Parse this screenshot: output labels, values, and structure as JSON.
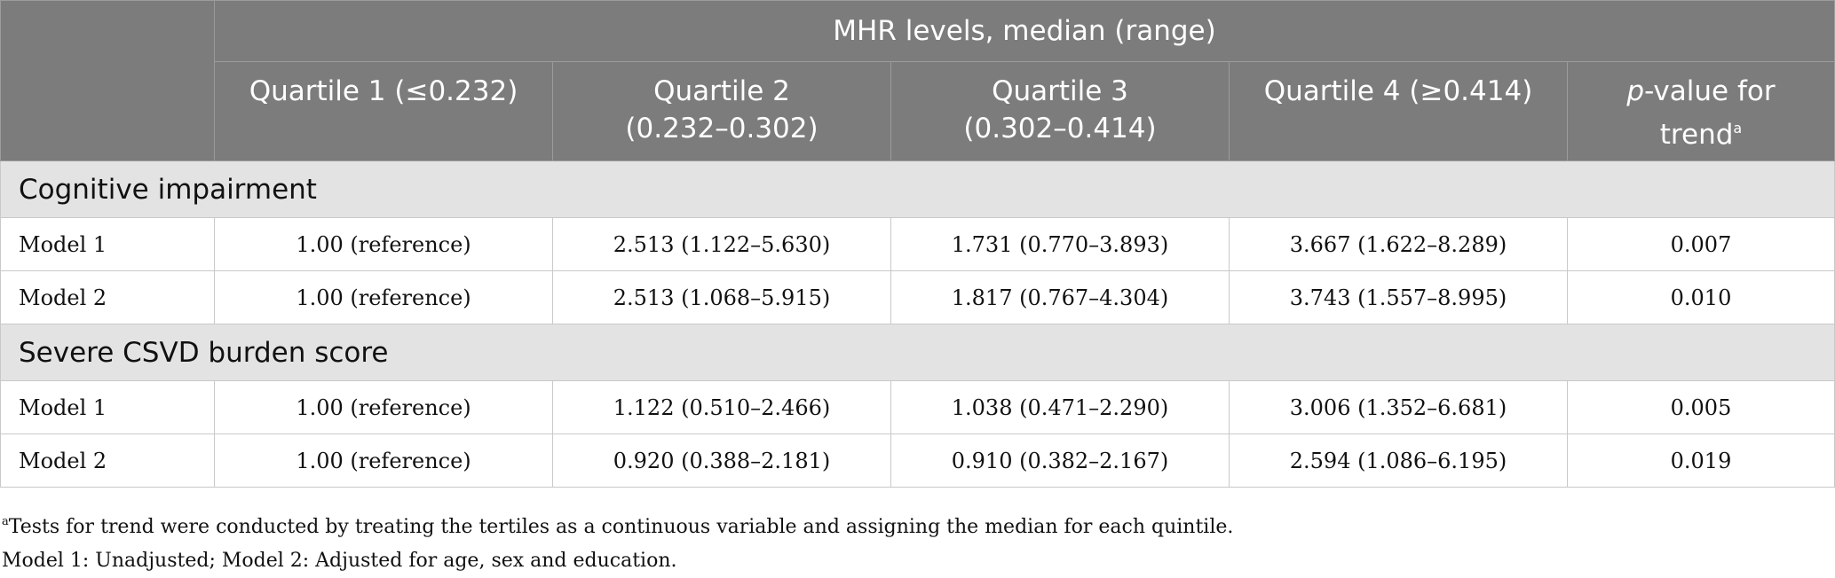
{
  "table": {
    "header_group": "MHR levels, median (range)",
    "columns": [
      {
        "line1": "Quartile 1 (≤0.232)",
        "line2": ""
      },
      {
        "line1": "Quartile 2",
        "line2": "(0.232–0.302)"
      },
      {
        "line1": "Quartile 3",
        "line2": "(0.302–0.414)"
      },
      {
        "line1": "Quartile 4 (≥0.414)",
        "line2": ""
      }
    ],
    "p_col": {
      "italic": "p",
      "rest": "-value for",
      "line2": "trend",
      "sup": "a"
    },
    "sections": [
      {
        "title": "Cognitive impairment",
        "rows": [
          {
            "label": "Model 1",
            "q1": "1.00 (reference)",
            "q2": "2.513 (1.122–5.630)",
            "q3": "1.731 (0.770–3.893)",
            "q4": "3.667 (1.622–8.289)",
            "p": "0.007"
          },
          {
            "label": "Model 2",
            "q1": "1.00 (reference)",
            "q2": "2.513 (1.068–5.915)",
            "q3": "1.817 (0.767–4.304)",
            "q4": "3.743 (1.557–8.995)",
            "p": "0.010"
          }
        ]
      },
      {
        "title": "Severe CSVD burden score",
        "rows": [
          {
            "label": "Model 1",
            "q1": "1.00 (reference)",
            "q2": "1.122 (0.510–2.466)",
            "q3": "1.038 (0.471–2.290)",
            "q4": "3.006 (1.352–6.681)",
            "p": "0.005"
          },
          {
            "label": "Model 2",
            "q1": "1.00 (reference)",
            "q2": "0.920 (0.388–2.181)",
            "q3": "0.910 (0.382–2.167)",
            "q4": "2.594 (1.086–6.195)",
            "p": "0.019"
          }
        ]
      }
    ]
  },
  "footnotes": {
    "a_marker": "a",
    "a_text": "Tests for trend were conducted by treating the tertiles as a continuous variable and assigning the median for each quintile.",
    "models": "Model 1: Unadjusted; Model 2: Adjusted for age, sex and education."
  }
}
